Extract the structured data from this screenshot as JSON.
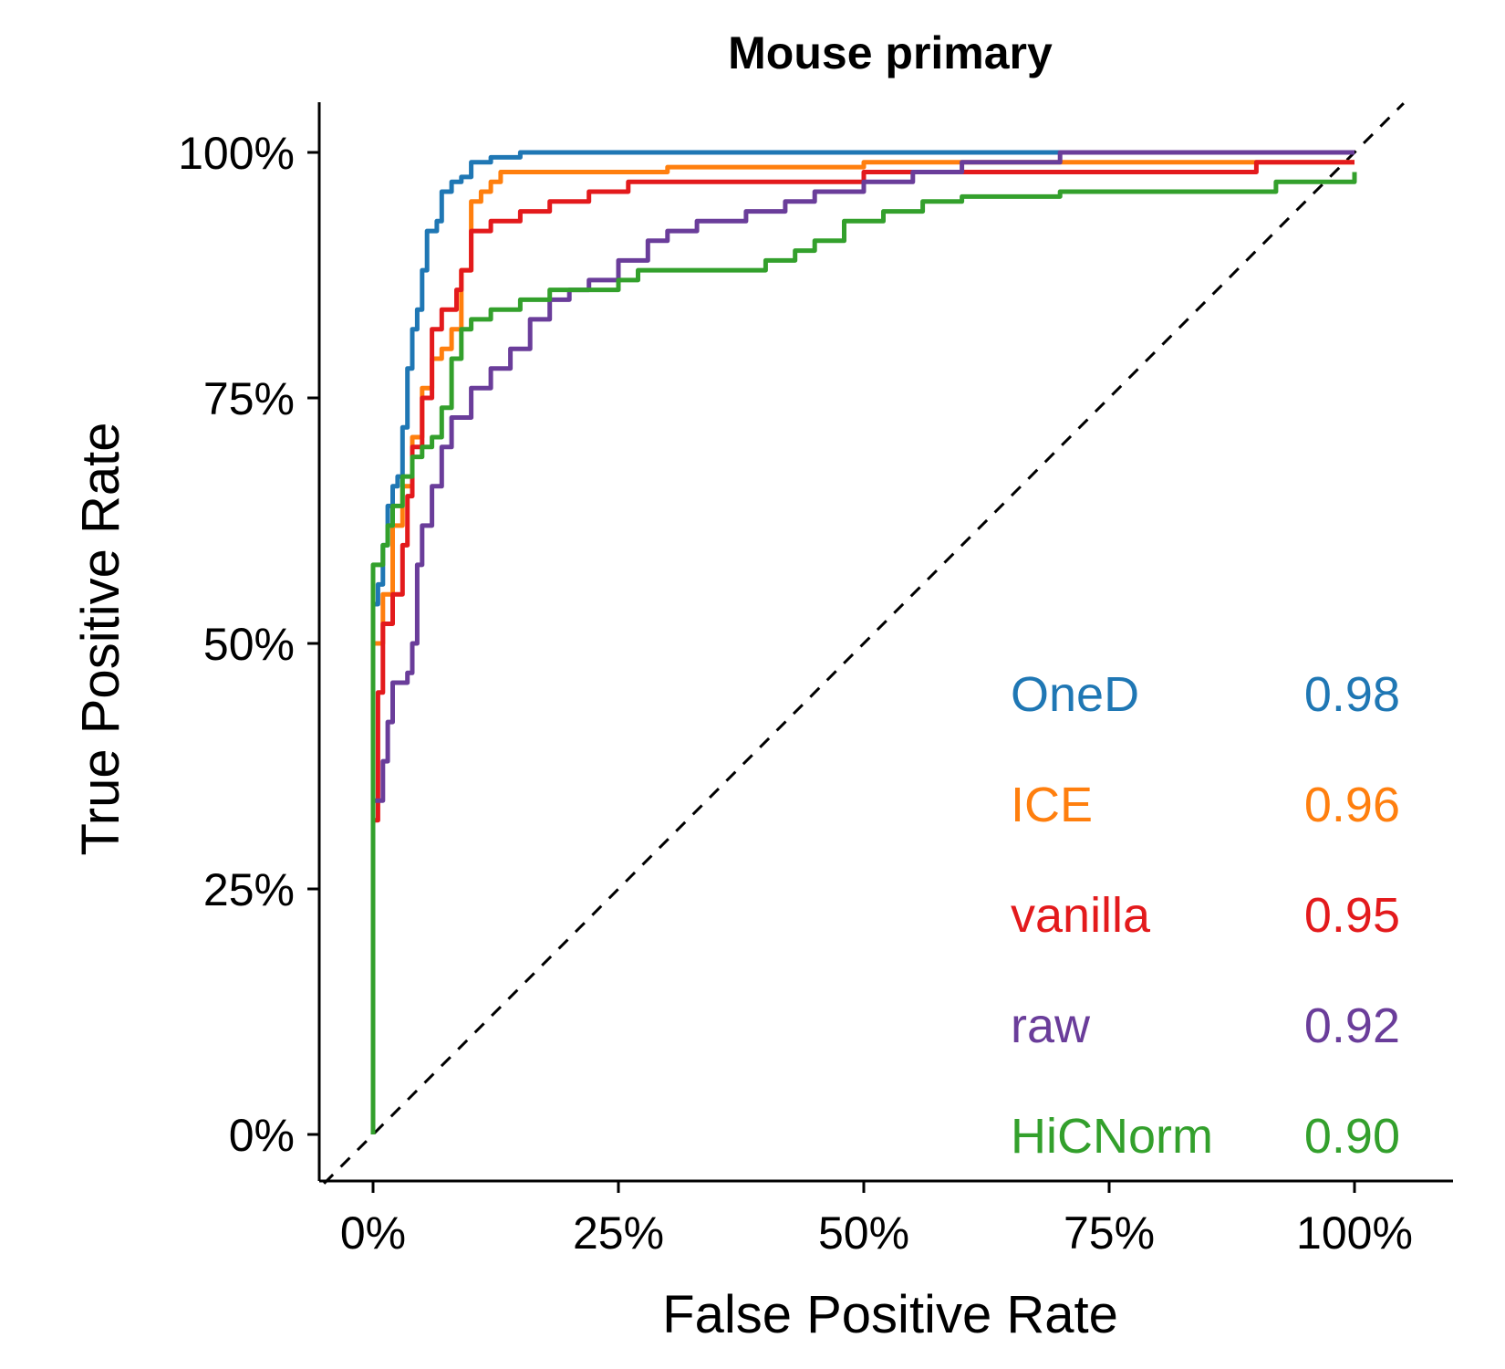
{
  "chart_data": {
    "type": "line",
    "title": "Mouse primary",
    "xlabel": "False Positive Rate",
    "ylabel": "True Positive Rate",
    "xlim": [
      0,
      1
    ],
    "ylim": [
      0,
      1
    ],
    "x_ticks": [
      "0%",
      "25%",
      "50%",
      "75%",
      "100%"
    ],
    "y_ticks": [
      "0%",
      "25%",
      "50%",
      "75%",
      "100%"
    ],
    "reference_line": "diagonal dashed",
    "legend_position": "bottom-right",
    "series": [
      {
        "name": "OneD",
        "auc": "0.98",
        "color": "#1f77b4",
        "points": [
          [
            0,
            0
          ],
          [
            0,
            0.54
          ],
          [
            0.005,
            0.56
          ],
          [
            0.01,
            0.6
          ],
          [
            0.015,
            0.64
          ],
          [
            0.02,
            0.66
          ],
          [
            0.025,
            0.67
          ],
          [
            0.03,
            0.72
          ],
          [
            0.035,
            0.78
          ],
          [
            0.04,
            0.82
          ],
          [
            0.045,
            0.84
          ],
          [
            0.05,
            0.88
          ],
          [
            0.055,
            0.92
          ],
          [
            0.065,
            0.93
          ],
          [
            0.07,
            0.96
          ],
          [
            0.08,
            0.97
          ],
          [
            0.09,
            0.975
          ],
          [
            0.1,
            0.99
          ],
          [
            0.12,
            0.995
          ],
          [
            0.15,
            1.0
          ],
          [
            1.0,
            1.0
          ]
        ]
      },
      {
        "name": "ICE",
        "auc": "0.96",
        "color": "#ff7f0e",
        "points": [
          [
            0,
            0
          ],
          [
            0,
            0.5
          ],
          [
            0.01,
            0.55
          ],
          [
            0.02,
            0.62
          ],
          [
            0.03,
            0.66
          ],
          [
            0.04,
            0.71
          ],
          [
            0.05,
            0.76
          ],
          [
            0.06,
            0.79
          ],
          [
            0.07,
            0.8
          ],
          [
            0.08,
            0.82
          ],
          [
            0.09,
            0.88
          ],
          [
            0.1,
            0.95
          ],
          [
            0.11,
            0.96
          ],
          [
            0.12,
            0.97
          ],
          [
            0.13,
            0.98
          ],
          [
            0.2,
            0.98
          ],
          [
            0.3,
            0.985
          ],
          [
            0.5,
            0.99
          ],
          [
            0.6,
            0.99
          ],
          [
            1.0,
            0.99
          ]
        ]
      },
      {
        "name": "vanilla",
        "auc": "0.95",
        "color": "#e31a1c",
        "points": [
          [
            0,
            0
          ],
          [
            0,
            0.32
          ],
          [
            0.005,
            0.45
          ],
          [
            0.01,
            0.52
          ],
          [
            0.02,
            0.55
          ],
          [
            0.03,
            0.6
          ],
          [
            0.035,
            0.65
          ],
          [
            0.04,
            0.7
          ],
          [
            0.05,
            0.75
          ],
          [
            0.06,
            0.82
          ],
          [
            0.07,
            0.84
          ],
          [
            0.085,
            0.86
          ],
          [
            0.09,
            0.88
          ],
          [
            0.1,
            0.92
          ],
          [
            0.12,
            0.93
          ],
          [
            0.15,
            0.94
          ],
          [
            0.18,
            0.95
          ],
          [
            0.22,
            0.96
          ],
          [
            0.26,
            0.97
          ],
          [
            0.4,
            0.97
          ],
          [
            0.5,
            0.98
          ],
          [
            0.7,
            0.98
          ],
          [
            0.88,
            0.98
          ],
          [
            0.9,
            0.99
          ],
          [
            1.0,
            0.99
          ]
        ]
      },
      {
        "name": "raw",
        "auc": "0.92",
        "color": "#6a3d9a",
        "points": [
          [
            0,
            0
          ],
          [
            0,
            0.34
          ],
          [
            0.01,
            0.38
          ],
          [
            0.015,
            0.42
          ],
          [
            0.02,
            0.46
          ],
          [
            0.035,
            0.47
          ],
          [
            0.04,
            0.5
          ],
          [
            0.045,
            0.58
          ],
          [
            0.05,
            0.62
          ],
          [
            0.06,
            0.66
          ],
          [
            0.07,
            0.7
          ],
          [
            0.08,
            0.73
          ],
          [
            0.1,
            0.76
          ],
          [
            0.12,
            0.78
          ],
          [
            0.14,
            0.8
          ],
          [
            0.16,
            0.83
          ],
          [
            0.18,
            0.85
          ],
          [
            0.2,
            0.86
          ],
          [
            0.22,
            0.87
          ],
          [
            0.25,
            0.89
          ],
          [
            0.28,
            0.91
          ],
          [
            0.3,
            0.92
          ],
          [
            0.33,
            0.93
          ],
          [
            0.38,
            0.94
          ],
          [
            0.42,
            0.95
          ],
          [
            0.45,
            0.96
          ],
          [
            0.5,
            0.97
          ],
          [
            0.55,
            0.98
          ],
          [
            0.6,
            0.99
          ],
          [
            0.7,
            1.0
          ],
          [
            1.0,
            1.0
          ]
        ]
      },
      {
        "name": "HiCNorm",
        "auc": "0.90",
        "color": "#33a02c",
        "points": [
          [
            0,
            0
          ],
          [
            0,
            0.58
          ],
          [
            0.01,
            0.6
          ],
          [
            0.015,
            0.62
          ],
          [
            0.02,
            0.64
          ],
          [
            0.03,
            0.67
          ],
          [
            0.04,
            0.69
          ],
          [
            0.05,
            0.7
          ],
          [
            0.06,
            0.71
          ],
          [
            0.07,
            0.74
          ],
          [
            0.08,
            0.79
          ],
          [
            0.09,
            0.82
          ],
          [
            0.1,
            0.83
          ],
          [
            0.12,
            0.84
          ],
          [
            0.15,
            0.85
          ],
          [
            0.18,
            0.86
          ],
          [
            0.25,
            0.87
          ],
          [
            0.27,
            0.88
          ],
          [
            0.35,
            0.88
          ],
          [
            0.4,
            0.89
          ],
          [
            0.43,
            0.9
          ],
          [
            0.45,
            0.91
          ],
          [
            0.48,
            0.93
          ],
          [
            0.52,
            0.94
          ],
          [
            0.56,
            0.95
          ],
          [
            0.6,
            0.955
          ],
          [
            0.7,
            0.96
          ],
          [
            0.9,
            0.96
          ],
          [
            0.92,
            0.97
          ],
          [
            1.0,
            0.98
          ]
        ]
      }
    ]
  }
}
